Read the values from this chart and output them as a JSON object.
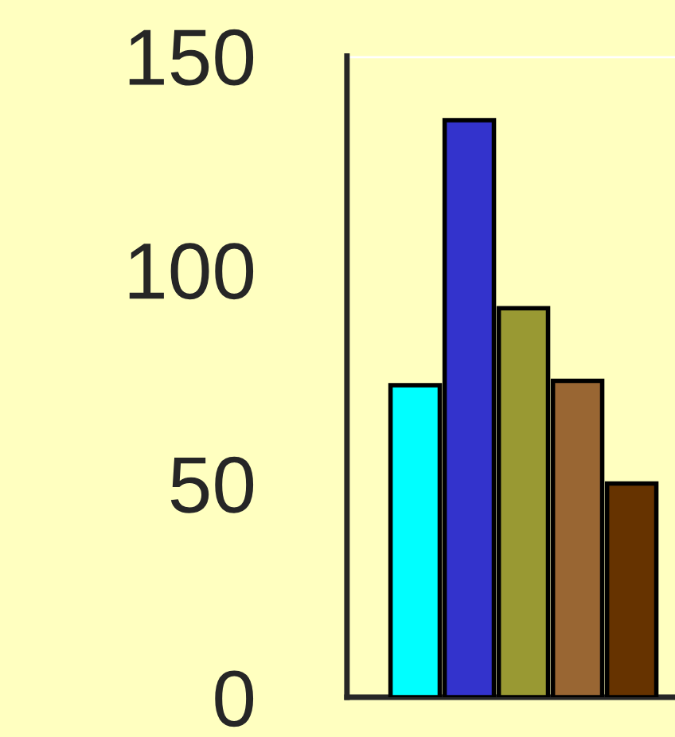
{
  "chart_data": {
    "type": "bar",
    "categories": [
      null,
      null,
      null,
      null,
      null
    ],
    "values": [
      73,
      135,
      91,
      74,
      50
    ],
    "colors": [
      "#00ffff",
      "#3333cc",
      "#999933",
      "#996633",
      "#663300"
    ],
    "ylim": [
      0,
      150
    ],
    "yticks": [
      0,
      50,
      100,
      150
    ],
    "ref_lines": [
      {
        "axis": "y",
        "value": 150,
        "color": "#ffffff"
      }
    ],
    "grid": false,
    "legend": false
  }
}
